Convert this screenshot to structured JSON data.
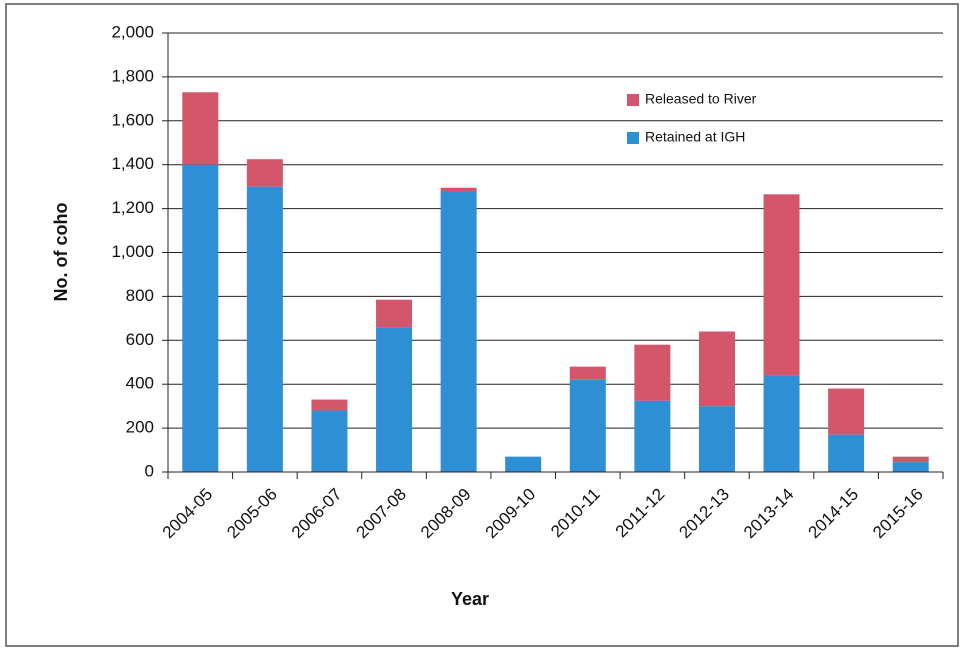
{
  "chart_data": {
    "type": "stacked-bar",
    "x_label": "Year",
    "y_label": "No. of coho",
    "categories": [
      "2004-05",
      "2005-06",
      "2006-07",
      "2007-08",
      "2008-09",
      "2009-10",
      "2010-11",
      "2011-12",
      "2012-13",
      "2013-14",
      "2014-15",
      "2015-16"
    ],
    "series": [
      {
        "name": "Retained at IGH",
        "color": "#2f8fd5",
        "values": [
          1400,
          1300,
          280,
          660,
          1280,
          70,
          420,
          325,
          300,
          440,
          170,
          45
        ]
      },
      {
        "name": "Released to River",
        "color": "#d3566b",
        "values": [
          330,
          125,
          50,
          125,
          15,
          0,
          60,
          255,
          340,
          825,
          210,
          25
        ]
      }
    ],
    "ylim": [
      0,
      2000
    ],
    "yticks": [
      0,
      200,
      400,
      600,
      800,
      {
        "value": 1000,
        "label": "1,000"
      },
      {
        "value": 1200,
        "label": "1,200"
      },
      {
        "value": 1400,
        "label": "1,400"
      },
      {
        "value": 1600,
        "label": "1,600"
      },
      {
        "value": 1800,
        "label": "1,800"
      },
      {
        "value": 2000,
        "label": "2,000"
      }
    ],
    "grid": true
  }
}
